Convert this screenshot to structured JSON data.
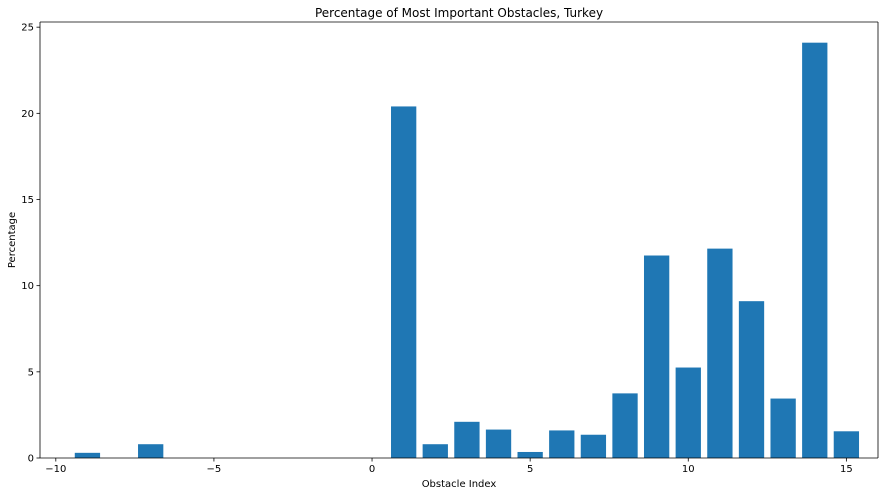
{
  "chart_data": {
    "type": "bar",
    "title": "Percentage of Most Important Obstacles, Turkey",
    "xlabel": "Obstacle Index",
    "ylabel": "Percentage",
    "xlim": [
      -10.5,
      16
    ],
    "ylim": [
      0,
      25.3
    ],
    "xticks": [
      -10,
      -5,
      0,
      5,
      10,
      15
    ],
    "xtick_labels": [
      "−10",
      "−5",
      "0",
      "5",
      "10",
      "15"
    ],
    "yticks": [
      0,
      5,
      10,
      15,
      20,
      25
    ],
    "ytick_labels": [
      "0",
      "5",
      "10",
      "15",
      "20",
      "25"
    ],
    "bar_width": 0.8,
    "color": "#1f77b4",
    "grid": false,
    "x": [
      -9,
      -7,
      1,
      2,
      3,
      4,
      5,
      6,
      7,
      8,
      9,
      10,
      11,
      12,
      13,
      14,
      15
    ],
    "values": [
      0.3,
      0.8,
      20.4,
      0.8,
      2.1,
      1.65,
      0.35,
      1.6,
      1.35,
      3.75,
      11.75,
      5.25,
      12.15,
      9.1,
      3.45,
      24.1,
      1.55
    ]
  }
}
